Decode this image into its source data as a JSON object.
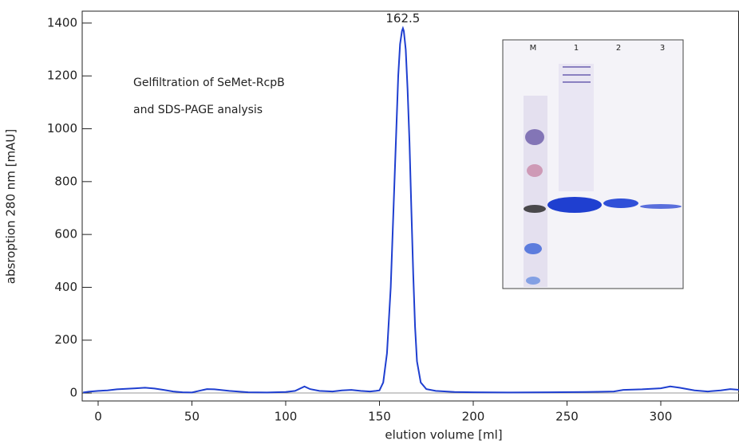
{
  "chart_data": {
    "type": "line",
    "x_label": "elution volume [ml]",
    "y_label": "absroption 280 nm [mAU]",
    "notes": [
      "Gelfiltration of SeMet-RcpB",
      "and SDS-PAGE analysis"
    ],
    "peak_label": "162.5",
    "color": "#1f3fd0",
    "x": [
      -8,
      -5,
      0,
      5,
      10,
      15,
      20,
      25,
      30,
      35,
      40,
      45,
      50,
      55,
      58,
      62,
      70,
      80,
      90,
      100,
      105,
      110,
      113,
      118,
      125,
      130,
      135,
      140,
      145,
      148,
      150,
      152,
      154,
      156,
      158,
      160,
      161,
      162,
      162.5,
      163,
      164,
      165,
      166,
      167,
      168,
      169,
      170,
      172,
      175,
      180,
      190,
      200,
      220,
      240,
      260,
      275,
      280,
      290,
      300,
      305,
      310,
      318,
      325,
      332,
      337,
      342
    ],
    "values": [
      2,
      5,
      8,
      10,
      14,
      16,
      18,
      20,
      17,
      12,
      6,
      3,
      2,
      10,
      15,
      14,
      8,
      3,
      2,
      4,
      8,
      25,
      15,
      8,
      6,
      10,
      12,
      8,
      6,
      8,
      10,
      40,
      150,
      400,
      800,
      1200,
      1320,
      1370,
      1380,
      1370,
      1300,
      1150,
      950,
      700,
      450,
      250,
      120,
      40,
      15,
      8,
      4,
      3,
      2,
      3,
      4,
      6,
      12,
      14,
      18,
      25,
      20,
      10,
      6,
      10,
      15,
      12
    ],
    "xlim": [
      -8.5,
      341.7
    ],
    "ylim": [
      -30,
      1445
    ],
    "xticks": [
      0,
      50,
      100,
      150,
      200,
      250,
      300
    ],
    "yticks": [
      0,
      200,
      400,
      600,
      800,
      1000,
      1200,
      1400
    ],
    "inset": {
      "lane_labels": [
        "M",
        "1",
        "2",
        "3"
      ]
    }
  }
}
